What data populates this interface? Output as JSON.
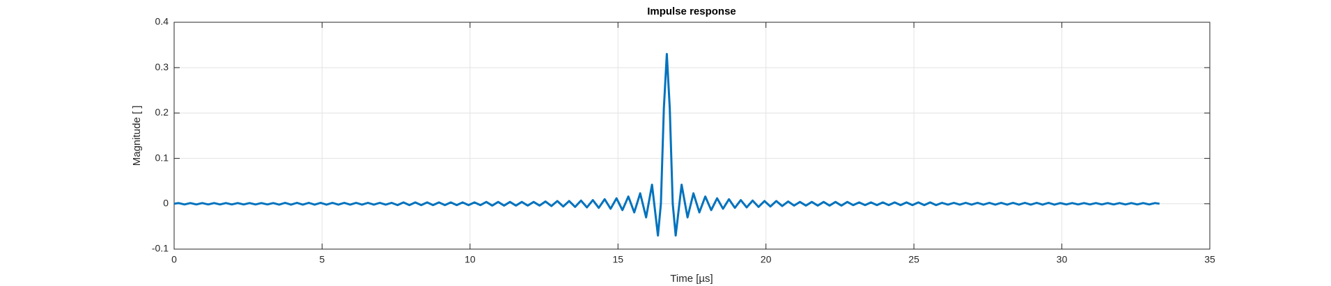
{
  "chart_data": {
    "type": "line",
    "title": "Impulse response",
    "xlabel": "Time [µs]",
    "ylabel": "Magnitude [ ]",
    "xlim": [
      0,
      35
    ],
    "ylim": [
      -0.1,
      0.4
    ],
    "xticks": [
      0,
      5,
      10,
      15,
      20,
      25,
      30,
      35
    ],
    "yticks": [
      -0.1,
      0,
      0.1,
      0.2,
      0.3,
      0.4
    ],
    "grid": true,
    "x": [
      0,
      0.15,
      0.35,
      0.55,
      0.75,
      0.95,
      1.15,
      1.35,
      1.55,
      1.75,
      1.95,
      2.15,
      2.35,
      2.55,
      2.75,
      2.95,
      3.15,
      3.35,
      3.55,
      3.75,
      3.95,
      4.15,
      4.35,
      4.55,
      4.75,
      4.95,
      5.15,
      5.35,
      5.55,
      5.75,
      5.95,
      6.15,
      6.35,
      6.55,
      6.75,
      6.95,
      7.15,
      7.35,
      7.55,
      7.75,
      7.95,
      8.15,
      8.35,
      8.55,
      8.75,
      8.95,
      9.15,
      9.35,
      9.55,
      9.75,
      9.95,
      10.15,
      10.35,
      10.55,
      10.75,
      10.95,
      11.15,
      11.35,
      11.55,
      11.75,
      11.95,
      12.15,
      12.35,
      12.55,
      12.75,
      12.95,
      13.15,
      13.35,
      13.55,
      13.75,
      13.95,
      14.15,
      14.35,
      14.55,
      14.75,
      14.95,
      15.15,
      15.35,
      15.55,
      15.75,
      15.95,
      16.15,
      16.35,
      16.45,
      16.55,
      16.65,
      16.75,
      16.85,
      16.95,
      17.15,
      17.35,
      17.55,
      17.75,
      17.95,
      18.15,
      18.35,
      18.55,
      18.75,
      18.95,
      19.15,
      19.35,
      19.55,
      19.75,
      19.95,
      20.15,
      20.35,
      20.55,
      20.75,
      20.95,
      21.15,
      21.35,
      21.55,
      21.75,
      21.95,
      22.15,
      22.35,
      22.55,
      22.75,
      22.95,
      23.15,
      23.35,
      23.55,
      23.75,
      23.95,
      24.15,
      24.35,
      24.55,
      24.75,
      24.95,
      25.15,
      25.35,
      25.55,
      25.75,
      25.95,
      26.15,
      26.35,
      26.55,
      26.75,
      26.95,
      27.15,
      27.35,
      27.55,
      27.75,
      27.95,
      28.15,
      28.35,
      28.55,
      28.75,
      28.95,
      29.15,
      29.35,
      29.55,
      29.75,
      29.95,
      30.15,
      30.35,
      30.55,
      30.75,
      30.95,
      31.15,
      31.35,
      31.55,
      31.75,
      31.95,
      32.15,
      32.35,
      32.55,
      32.75,
      32.95,
      33.15,
      33.3
    ],
    "series": [
      {
        "name": "Impulse response",
        "color": "#0072bd",
        "values": [
          0,
          0.0015,
          -0.0015,
          0.0015,
          -0.0015,
          0.0015,
          -0.0015,
          0.0015,
          -0.0015,
          0.0015,
          -0.0015,
          0.0015,
          -0.0015,
          0.0015,
          -0.0015,
          0.0015,
          -0.0015,
          0.0015,
          -0.002,
          0.002,
          -0.002,
          0.002,
          -0.002,
          0.002,
          -0.002,
          0.002,
          -0.002,
          0.002,
          -0.002,
          0.002,
          -0.002,
          0.002,
          -0.002,
          0.002,
          -0.002,
          0.002,
          -0.002,
          0.002,
          -0.003,
          0.003,
          -0.003,
          0.003,
          -0.003,
          0.003,
          -0.003,
          0.003,
          -0.003,
          0.003,
          -0.003,
          0.003,
          -0.003,
          0.003,
          -0.003,
          0.004,
          -0.004,
          0.004,
          -0.004,
          0.004,
          -0.004,
          0.004,
          -0.004,
          0.004,
          -0.004,
          0.005,
          -0.005,
          0.006,
          -0.006,
          0.006,
          -0.007,
          0.007,
          -0.008,
          0.008,
          -0.009,
          0.01,
          -0.011,
          0.012,
          -0.014,
          0.016,
          -0.019,
          0.023,
          -0.03,
          0.042,
          -0.07,
          0,
          0.21,
          0.33,
          0.21,
          0,
          -0.07,
          0.042,
          -0.03,
          0.023,
          -0.019,
          0.016,
          -0.014,
          0.012,
          -0.011,
          0.01,
          -0.009,
          0.008,
          -0.008,
          0.007,
          -0.007,
          0.006,
          -0.006,
          0.006,
          -0.005,
          0.005,
          -0.004,
          0.004,
          -0.004,
          0.004,
          -0.004,
          0.004,
          -0.004,
          0.004,
          -0.004,
          0.004,
          -0.003,
          0.003,
          -0.003,
          0.003,
          -0.003,
          0.003,
          -0.003,
          0.003,
          -0.003,
          0.003,
          -0.003,
          0.003,
          -0.003,
          0.003,
          -0.003,
          0.002,
          -0.002,
          0.002,
          -0.002,
          0.002,
          -0.002,
          0.002,
          -0.002,
          0.002,
          -0.002,
          0.002,
          -0.002,
          0.002,
          -0.002,
          0.002,
          -0.002,
          0.002,
          -0.002,
          0.002,
          -0.002,
          0.0015,
          -0.0015,
          0.0015,
          -0.0015,
          0.0015,
          -0.0015,
          0.0015,
          -0.0015,
          0.0015,
          -0.0015,
          0.0015,
          -0.0015,
          0.0015,
          -0.0015,
          0.0015,
          -0.0015,
          0.0015,
          0
        ]
      }
    ]
  }
}
